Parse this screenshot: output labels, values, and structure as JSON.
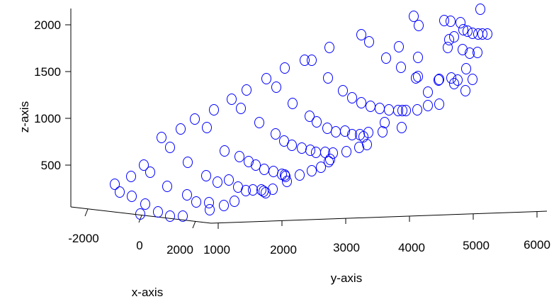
{
  "chart_data": {
    "type": "scatter",
    "title": "",
    "xlabel": "x-axis",
    "ylabel": "y-axis",
    "zlabel": "z-axis",
    "x_ticks": [
      "-2000",
      "0",
      "2000"
    ],
    "y_ticks": [
      "1000",
      "2000",
      "3000",
      "4000",
      "5000",
      "6000"
    ],
    "z_ticks": [
      "500",
      "1000",
      "1500",
      "2000"
    ],
    "marker": "circle-open",
    "marker_color": "#0000ff",
    "series": [
      {
        "points": [
          {
            "p": [
              162,
              260
            ]
          },
          {
            "p": [
              169,
              271
            ]
          },
          {
            "p": [
              185,
              249
            ]
          },
          {
            "p": [
              186,
              277
            ]
          },
          {
            "p": [
              198,
              302
            ]
          },
          {
            "p": [
              205,
              288
            ]
          },
          {
            "p": [
              203,
              233
            ]
          },
          {
            "p": [
              212,
              243
            ]
          },
          {
            "p": [
              236,
              263
            ]
          },
          {
            "p": [
              223,
              299
            ]
          },
          {
            "p": [
              240,
              305
            ]
          },
          {
            "p": [
              258,
              305
            ]
          },
          {
            "p": [
              228,
              194
            ]
          },
          {
            "p": [
              240,
              208
            ]
          },
          {
            "p": [
              255,
              182
            ]
          },
          {
            "p": [
              265,
              229
            ]
          },
          {
            "p": [
              264,
              275
            ]
          },
          {
            "p": [
              277,
              285
            ]
          },
          {
            "p": [
              291,
              248
            ]
          },
          {
            "p": [
              296,
              296
            ]
          },
          {
            "p": [
              295,
              286
            ]
          },
          {
            "p": [
              307,
              257
            ]
          },
          {
            "p": [
              316,
              290
            ]
          },
          {
            "p": [
              331,
              284
            ]
          },
          {
            "p": [
              275,
              168
            ]
          },
          {
            "p": [
              292,
              180
            ]
          },
          {
            "p": [
              302,
              155
            ]
          },
          {
            "p": [
              317,
              213
            ]
          },
          {
            "p": [
              323,
              254
            ]
          },
          {
            "p": [
              336,
              264
            ]
          },
          {
            "p": [
              347,
              269
            ]
          },
          {
            "p": [
              357,
              268
            ]
          },
          {
            "p": [
              369,
              268
            ]
          },
          {
            "p": [
              372,
              270
            ]
          },
          {
            "p": [
              375,
              272
            ]
          },
          {
            "p": [
              385,
              267
            ]
          },
          {
            "p": [
              405,
              256
            ]
          },
          {
            "p": [
              327,
              140
            ]
          },
          {
            "p": [
              340,
              153
            ]
          },
          {
            "p": [
              348,
              127
            ]
          },
          {
            "p": [
              338,
              221
            ]
          },
          {
            "p": [
              351,
              228
            ]
          },
          {
            "p": [
              361,
              233
            ]
          },
          {
            "p": [
              373,
              239
            ]
          },
          {
            "p": [
              386,
              242
            ]
          },
          {
            "p": [
              398,
              246
            ]
          },
          {
            "p": [
              402,
              247
            ]
          },
          {
            "p": [
              403,
              249
            ]
          },
          {
            "p": [
              423,
              247
            ]
          },
          {
            "p": [
              440,
              241
            ]
          },
          {
            "p": [
              453,
              236
            ]
          },
          {
            "p": [
              464,
              228
            ]
          },
          {
            "p": [
              466,
              225
            ]
          },
          {
            "p": [
              376,
              111
            ]
          },
          {
            "p": [
              390,
              123
            ]
          },
          {
            "p": [
              402,
              96
            ]
          },
          {
            "p": [
              413,
              146
            ]
          },
          {
            "p": [
              366,
              173
            ]
          },
          {
            "p": [
              389,
              189
            ]
          },
          {
            "p": [
              401,
              199
            ]
          },
          {
            "p": [
              412,
              205
            ]
          },
          {
            "p": [
              426,
              209
            ]
          },
          {
            "p": [
              438,
              212
            ]
          },
          {
            "p": [
              446,
              215
            ]
          },
          {
            "p": [
              459,
              215
            ]
          },
          {
            "p": [
              470,
              216
            ]
          },
          {
            "p": [
              489,
              214
            ]
          },
          {
            "p": [
              507,
              208
            ]
          },
          {
            "p": [
              518,
              204
            ]
          },
          {
            "p": [
              430,
              85
            ]
          },
          {
            "p": [
              440,
              85
            ]
          },
          {
            "p": [
              463,
              110
            ]
          },
          {
            "p": [
              465,
              67
            ]
          },
          {
            "p": [
              437,
              164
            ]
          },
          {
            "p": [
              447,
              172
            ]
          },
          {
            "p": [
              462,
              181
            ]
          },
          {
            "p": [
              474,
              186
            ]
          },
          {
            "p": [
              487,
              185
            ]
          },
          {
            "p": [
              497,
              190
            ]
          },
          {
            "p": [
              508,
              190
            ]
          },
          {
            "p": [
              513,
              193
            ]
          },
          {
            "p": [
              520,
              187
            ]
          },
          {
            "p": [
              540,
              186
            ]
          },
          {
            "p": [
              567,
              180
            ]
          },
          {
            "p": [
              543,
              173
            ]
          },
          {
            "p": [
              484,
              128
            ]
          },
          {
            "p": [
              497,
              138
            ]
          },
          {
            "p": [
              510,
              145
            ]
          },
          {
            "p": [
              523,
              150
            ]
          },
          {
            "p": [
              536,
              153
            ]
          },
          {
            "p": [
              549,
              155
            ]
          },
          {
            "p": [
              562,
              156
            ]
          },
          {
            "p": [
              568,
              156
            ]
          },
          {
            "p": [
              573,
              156
            ]
          },
          {
            "p": [
              589,
              155
            ]
          },
          {
            "p": [
              604,
              149
            ]
          },
          {
            "p": [
              563,
              66
            ]
          },
          {
            "p": [
              590,
              81
            ]
          },
          {
            "p": [
              510,
              49
            ]
          },
          {
            "p": [
              521,
              59
            ]
          },
          {
            "p": [
              545,
              82
            ]
          },
          {
            "p": [
              566,
              95
            ]
          },
          {
            "p": [
              587,
              110
            ]
          },
          {
            "p": [
              604,
              130
            ]
          },
          {
            "p": [
              634,
              56
            ]
          },
          {
            "p": [
              584,
              23
            ]
          },
          {
            "p": [
              591,
              36
            ]
          },
          {
            "p": [
              627,
              29
            ]
          },
          {
            "p": [
              636,
              30
            ]
          },
          {
            "p": [
              650,
              32
            ]
          },
          {
            "p": [
              654,
              42
            ]
          },
          {
            "p": [
              660,
              44
            ]
          },
          {
            "p": [
              667,
              47
            ]
          },
          {
            "p": [
              675,
              48
            ]
          },
          {
            "p": [
              681,
              48
            ]
          },
          {
            "p": [
              688,
              48
            ]
          },
          {
            "p": [
              678,
              13
            ]
          },
          {
            "p": [
              632,
              67
            ]
          },
          {
            "p": [
              641,
              52
            ]
          },
          {
            "p": [
              653,
              70
            ]
          },
          {
            "p": [
              663,
              75
            ]
          },
          {
            "p": [
              674,
              74
            ]
          },
          {
            "p": [
              667,
              112
            ]
          },
          {
            "p": [
              657,
              128
            ]
          },
          {
            "p": [
              646,
              113
            ]
          },
          {
            "p": [
              637,
              110
            ]
          },
          {
            "p": [
              619,
              113
            ]
          },
          {
            "p": [
              620,
              112
            ]
          },
          {
            "p": [
              590,
              108
            ]
          },
          {
            "p": [
              620,
              147
            ]
          },
          {
            "p": [
              658,
              97
            ]
          },
          {
            "p": [
              641,
              118
            ]
          }
        ]
      }
    ]
  }
}
